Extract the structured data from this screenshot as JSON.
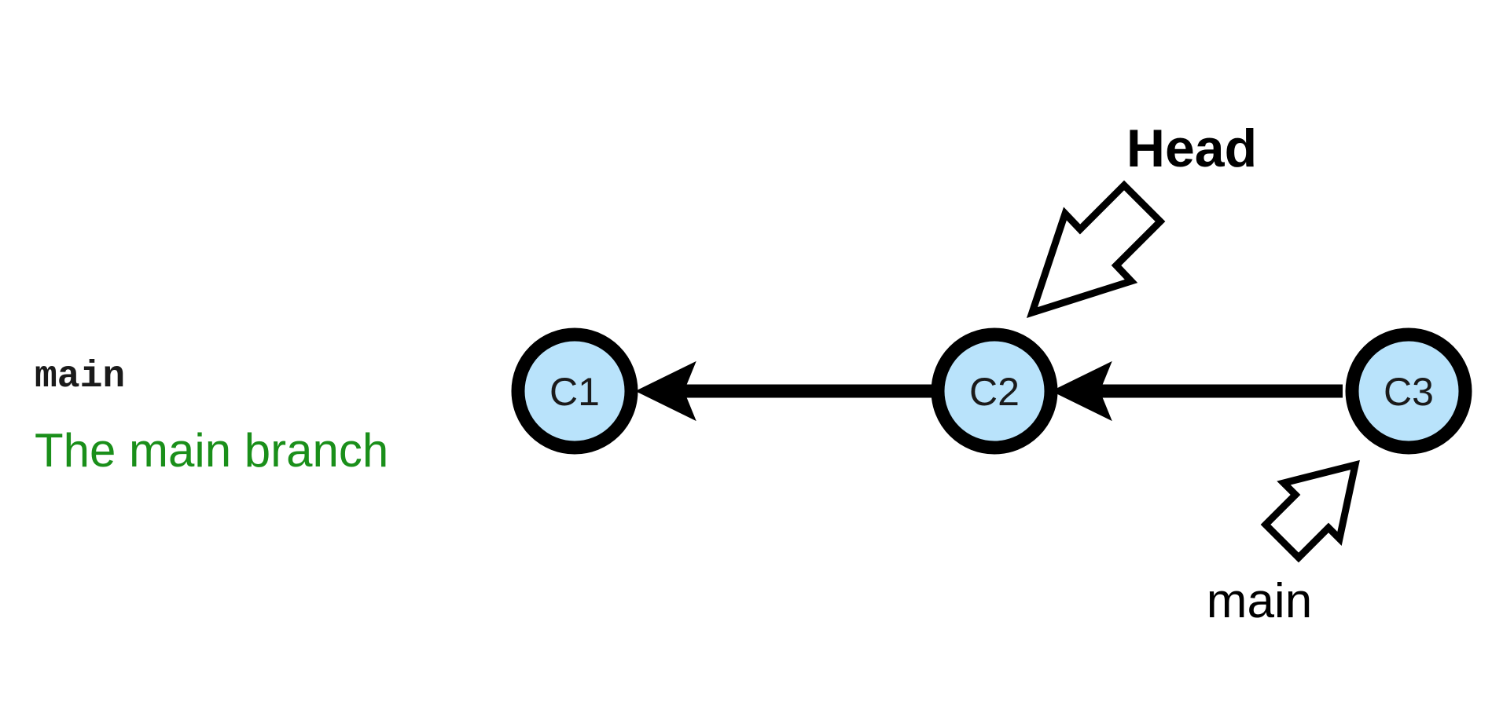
{
  "legend": {
    "code": "main",
    "description": "The main branch"
  },
  "commits": [
    {
      "id": "c1",
      "label": "C1"
    },
    {
      "id": "c2",
      "label": "C2"
    },
    {
      "id": "c3",
      "label": "C3"
    }
  ],
  "pointers": {
    "head": {
      "label": "Head",
      "target": "C2"
    },
    "branch": {
      "label": "main",
      "target": "C3"
    }
  },
  "colors": {
    "commit_fill": "#b9e3fb",
    "stroke": "#000000",
    "legend_desc": "#1a8f1a"
  }
}
